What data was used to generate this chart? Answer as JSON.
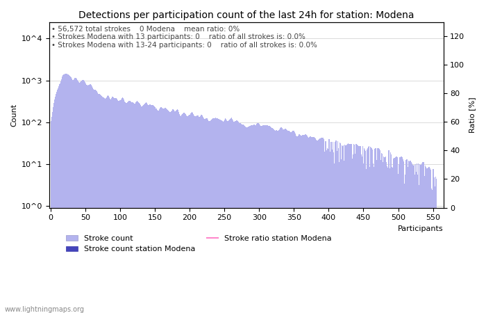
{
  "title": "Detections per participation count of the last 24h for station: Modena",
  "xlabel": "Participants",
  "ylabel_left": "Count",
  "ylabel_right": "Ratio [%]",
  "annotation_lines": [
    "56,572 total strokes    0 Modena    mean ratio: 0%",
    "Strokes Modena with 13 participants: 0    ratio of all strokes is: 0.0%",
    "Strokes Modena with 13-24 participants: 0    ratio of all strokes is: 0.0%"
  ],
  "x_max": 560,
  "bar_color_light": "#b3b3ee",
  "bar_color_dark": "#4444bb",
  "ratio_line_color": "#ff88cc",
  "legend_labels": [
    "Stroke count",
    "Stroke count station Modena",
    "Stroke ratio station Modena"
  ],
  "footer_text": "www.lightningmaps.org",
  "title_fontsize": 10,
  "annotation_fontsize": 7.5,
  "axis_fontsize": 8,
  "legend_fontsize": 8,
  "tick_label_format": [
    "10^0",
    "10^1",
    "10^2",
    "10^3",
    "10^4"
  ],
  "ytick_values": [
    1,
    10,
    100,
    1000,
    10000
  ],
  "right_yticks": [
    0,
    20,
    40,
    60,
    80,
    100,
    120
  ],
  "xticks": [
    0,
    50,
    100,
    150,
    200,
    250,
    300,
    350,
    400,
    450,
    500,
    550
  ]
}
